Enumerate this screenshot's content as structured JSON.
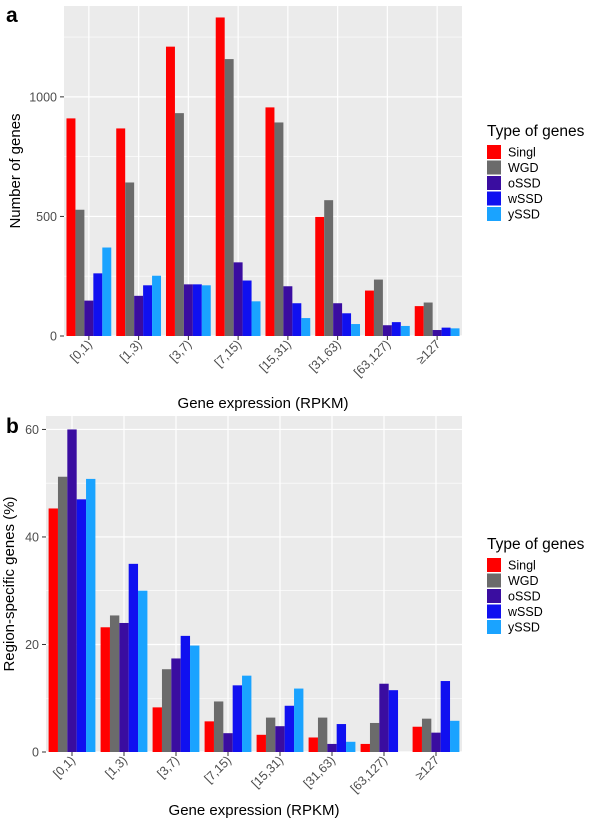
{
  "panels": [
    {
      "letter": "a",
      "chart_data": {
        "type": "bar",
        "categories": [
          "[0,1)",
          "[1,3)",
          "[3,7)",
          "[7,15)",
          "[15,31)",
          "[31,63)",
          "[63,127)",
          "≥127"
        ],
        "series": [
          {
            "name": "Singl",
            "values": [
              910,
              868,
              1210,
              1332,
              956,
              498,
              190,
              125
            ]
          },
          {
            "name": "WGD",
            "values": [
              528,
              642,
              932,
              1158,
              893,
              568,
              236,
              140
            ]
          },
          {
            "name": "oSSD",
            "values": [
              148,
              168,
              216,
              308,
              208,
              137,
              45,
              25
            ]
          },
          {
            "name": "wSSD",
            "values": [
              262,
              212,
              216,
              232,
              137,
              95,
              58,
              35
            ]
          },
          {
            "name": "ySSD",
            "values": [
              370,
              252,
              212,
              145,
              75,
              50,
              42,
              32
            ]
          }
        ],
        "xlabel": "Gene expression (RPKM)",
        "ylabel": "Number of genes",
        "yticks": [
          0,
          500,
          1000
        ],
        "ylim": [
          0,
          1380
        ],
        "grid": true,
        "legend": {
          "title": "Type of genes",
          "placement": "right"
        }
      }
    },
    {
      "letter": "b",
      "chart_data": {
        "type": "bar",
        "categories": [
          "[0,1)",
          "[1,3)",
          "[3,7)",
          "[7,15)",
          "[15,31)",
          "[31,63)",
          "[63,127)",
          "≥127"
        ],
        "series": [
          {
            "name": "Singl",
            "values": [
              45.3,
              23.2,
              8.3,
              5.7,
              3.2,
              2.7,
              1.5,
              4.7
            ]
          },
          {
            "name": "WGD",
            "values": [
              51.2,
              25.4,
              15.4,
              9.4,
              6.4,
              6.4,
              5.4,
              6.2
            ]
          },
          {
            "name": "oSSD",
            "values": [
              60.0,
              24.0,
              17.4,
              3.5,
              4.8,
              1.5,
              12.7,
              3.6
            ]
          },
          {
            "name": "wSSD",
            "values": [
              47.0,
              35.0,
              21.6,
              12.4,
              8.6,
              5.2,
              11.5,
              13.2
            ]
          },
          {
            "name": "ySSD",
            "values": [
              50.8,
              30.0,
              19.8,
              14.2,
              11.8,
              1.9,
              0,
              5.8
            ]
          }
        ],
        "xlabel": "Gene expression (RPKM)",
        "ylabel": "Region-specific genes (%)",
        "yticks": [
          0,
          20,
          40,
          60
        ],
        "ylim": [
          0,
          62.5
        ],
        "grid": true,
        "legend": {
          "title": "Type of genes",
          "placement": "right"
        }
      }
    }
  ],
  "colors": {
    "Singl": "#ff0000",
    "WGD": "#6b6b6b",
    "oSSD": "#3a0da0",
    "wSSD": "#1010f0",
    "ySSD": "#1aa3ff",
    "panel_bg": "#ebebeb",
    "grid": "#ffffff",
    "text": "#000000",
    "tick_text": "#4d4d4d"
  }
}
